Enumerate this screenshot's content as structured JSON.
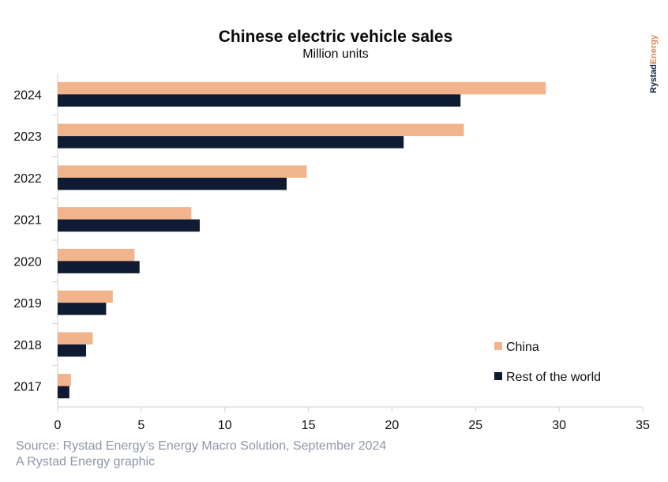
{
  "brand": {
    "part1": "Rystad",
    "part2": "Energy",
    "color1": "#0f1b33",
    "color2": "#d9895a"
  },
  "footer": {
    "source": "Source: Rystad Energy’s Energy Macro Solution, September 2024",
    "credit": "A Rystad Energy graphic"
  },
  "chart_data": {
    "type": "bar",
    "orientation": "horizontal",
    "title": "Chinese electric vehicle sales",
    "subtitle": "Million units",
    "categories": [
      "2024",
      "2023",
      "2022",
      "2021",
      "2020",
      "2019",
      "2018",
      "2017"
    ],
    "series": [
      {
        "name": "China",
        "color": "#f2b48d",
        "values": [
          29.2,
          24.3,
          14.9,
          8.0,
          4.6,
          3.3,
          2.1,
          0.8
        ]
      },
      {
        "name": "Rest of the world",
        "color": "#0f1b33",
        "values": [
          24.1,
          20.7,
          13.7,
          8.5,
          4.9,
          2.9,
          1.7,
          0.7
        ]
      }
    ],
    "xlim": [
      0,
      35
    ],
    "xticks": [
      0,
      5,
      10,
      15,
      20,
      25,
      30,
      35
    ],
    "grid": false,
    "legend_position": "bottom-right"
  }
}
